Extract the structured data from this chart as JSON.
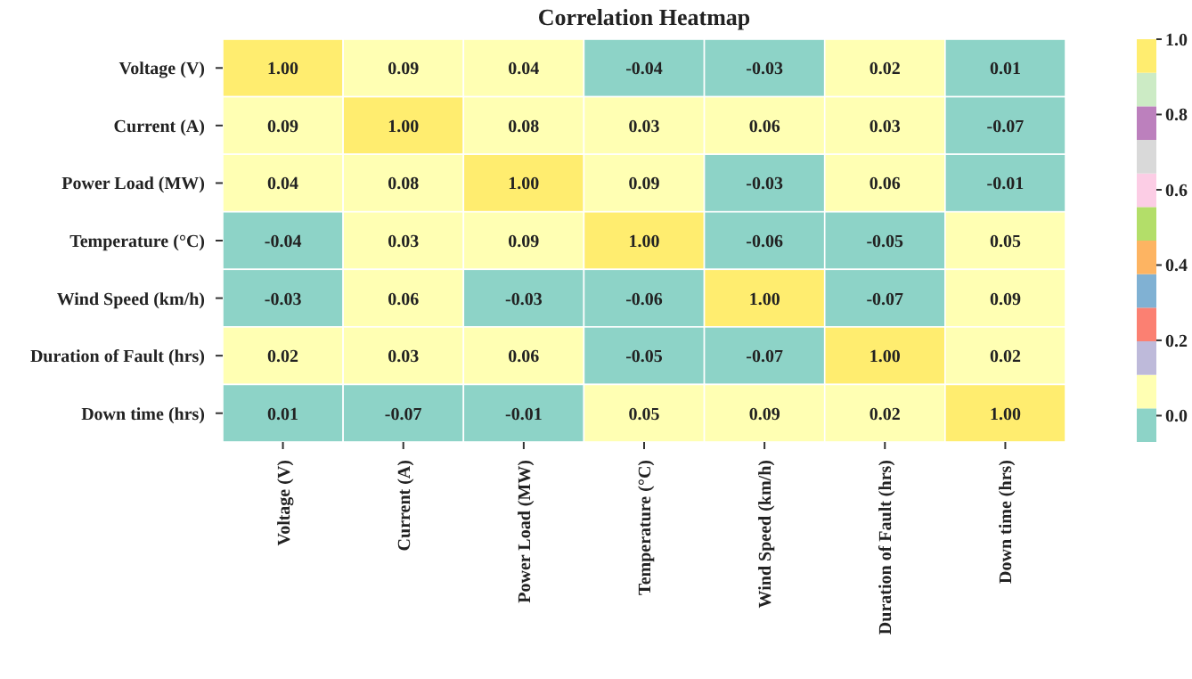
{
  "chart_data": {
    "type": "heatmap",
    "title": "Correlation Heatmap",
    "categories": [
      "Voltage (V)",
      "Current (A)",
      "Power Load (MW)",
      "Temperature (°C)",
      "Wind Speed (km/h)",
      "Duration of Fault (hrs)",
      "Down time (hrs)"
    ],
    "y_categories": [
      "Voltage (V)",
      "Current (A)",
      "Power Load (MW)",
      "Temperature (°C)",
      "Wind Speed (km/h)",
      "Duration of Fault (hrs)",
      "Down time (hrs)"
    ],
    "cells": [
      [
        1.0,
        0.09,
        0.04,
        -0.04,
        -0.03,
        0.02,
        0.01
      ],
      [
        0.09,
        1.0,
        0.08,
        0.03,
        0.06,
        0.03,
        -0.07
      ],
      [
        0.04,
        0.08,
        1.0,
        0.09,
        -0.03,
        0.06,
        -0.01
      ],
      [
        -0.04,
        0.03,
        0.09,
        1.0,
        -0.06,
        -0.05,
        0.05
      ],
      [
        -0.03,
        0.06,
        -0.03,
        -0.06,
        1.0,
        -0.07,
        0.09
      ],
      [
        0.02,
        0.03,
        0.06,
        -0.05,
        -0.07,
        1.0,
        0.02
      ],
      [
        0.01,
        -0.07,
        -0.01,
        0.05,
        0.09,
        0.02,
        1.0
      ]
    ],
    "cell_labels": [
      [
        "1.00",
        "0.09",
        "0.04",
        "-0.04",
        "-0.03",
        "0.02",
        "0.01"
      ],
      [
        "0.09",
        "1.00",
        "0.08",
        "0.03",
        "0.06",
        "0.03",
        "-0.07"
      ],
      [
        "0.04",
        "0.08",
        "1.00",
        "0.09",
        "-0.03",
        "0.06",
        "-0.01"
      ],
      [
        "-0.04",
        "0.03",
        "0.09",
        "1.00",
        "-0.06",
        "-0.05",
        "0.05"
      ],
      [
        "-0.03",
        "0.06",
        "-0.03",
        "-0.06",
        "1.00",
        "-0.07",
        "0.09"
      ],
      [
        "0.02",
        "0.03",
        "0.06",
        "-0.05",
        "-0.07",
        "1.00",
        "0.02"
      ],
      [
        "0.01",
        "-0.07",
        "-0.01",
        "0.05",
        "0.09",
        "0.02",
        "1.00"
      ]
    ],
    "clim": [
      -0.07,
      1.0
    ],
    "cticks": [
      {
        "value": 0,
        "label": "0.0"
      },
      {
        "value": 0.2,
        "label": "0.2"
      },
      {
        "value": 0.4,
        "label": "0.4"
      },
      {
        "value": 0.6,
        "label": "0.6"
      },
      {
        "value": 0.8,
        "label": "0.8"
      },
      {
        "value": 1,
        "label": "1.0"
      }
    ],
    "colors": [
      "#8dd3c7",
      "#ffffb3",
      "#bebada",
      "#fb8072",
      "#80b1d3",
      "#fdb462",
      "#b3de69",
      "#fccde5",
      "#d9d9d9",
      "#bc80bd",
      "#ccebc5",
      "#ffed6f"
    ]
  }
}
